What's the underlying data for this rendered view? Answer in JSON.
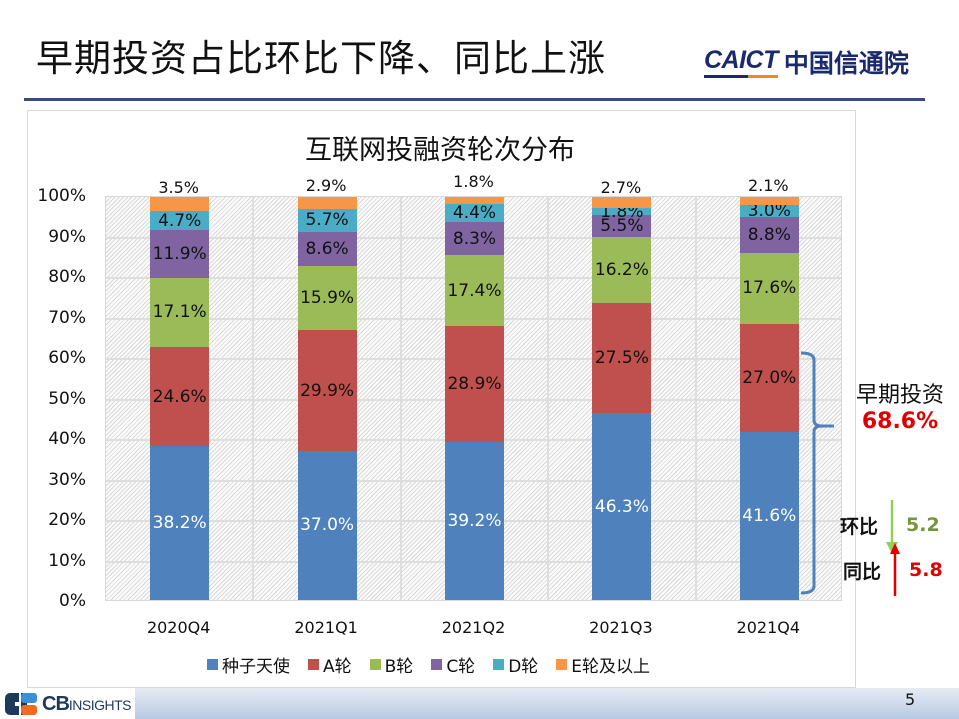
{
  "slide": {
    "title": "早期投资占比环比下降、同比上涨",
    "page_number": "5"
  },
  "logos": {
    "caict_en": "CAICT",
    "caict_cn": "中国信通院",
    "cb_big": "CB",
    "cb_small": "INSIGHTS"
  },
  "colors": {
    "seed": "#4f81bd",
    "a": "#c0504d",
    "b": "#9bbb59",
    "c": "#8064a2",
    "d": "#4bacc6",
    "e": "#f79646",
    "title_rule": "#3a4a7a",
    "highlight_red": "#e00000",
    "highlight_green": "#77933c",
    "arrow_green": "#92d050"
  },
  "chart_data": {
    "type": "bar",
    "stacked": true,
    "title": "互联网投融资轮次分布",
    "xlabel": "",
    "ylabel": "",
    "ylim": [
      0,
      100
    ],
    "y_ticks": [
      "0%",
      "10%",
      "20%",
      "30%",
      "40%",
      "50%",
      "60%",
      "70%",
      "80%",
      "90%",
      "100%"
    ],
    "categories": [
      "2020Q4",
      "2021Q1",
      "2021Q2",
      "2021Q3",
      "2021Q4"
    ],
    "series": [
      {
        "name": "种子天使",
        "key": "seed",
        "values": [
          38.2,
          37.0,
          39.2,
          46.3,
          41.6
        ],
        "labels": [
          "38.2%",
          "37.0%",
          "39.2%",
          "46.3%",
          "41.6%"
        ]
      },
      {
        "name": "A轮",
        "key": "a",
        "values": [
          24.6,
          29.9,
          28.9,
          27.5,
          27.0
        ],
        "labels": [
          "24.6%",
          "29.9%",
          "28.9%",
          "27.5%",
          "27.0%"
        ]
      },
      {
        "name": "B轮",
        "key": "b",
        "values": [
          17.1,
          15.9,
          17.4,
          16.2,
          17.6
        ],
        "labels": [
          "17.1%",
          "15.9%",
          "17.4%",
          "16.2%",
          "17.6%"
        ]
      },
      {
        "name": "C轮",
        "key": "c",
        "values": [
          11.9,
          8.6,
          8.3,
          5.5,
          8.8
        ],
        "labels": [
          "11.9%",
          "8.6%",
          "8.3%",
          "5.5%",
          "8.8%"
        ]
      },
      {
        "name": "D轮",
        "key": "d",
        "values": [
          4.7,
          5.7,
          4.4,
          1.8,
          3.0
        ],
        "labels": [
          "4.7%",
          "5.7%",
          "4.4%",
          "1.8%",
          "3.0%"
        ]
      },
      {
        "name": "E轮及以上",
        "key": "e",
        "values": [
          3.5,
          2.9,
          1.8,
          2.7,
          2.1
        ],
        "labels": [
          "3.5%",
          "2.9%",
          "1.8%",
          "2.7%",
          "2.1%"
        ]
      }
    ],
    "grid": true,
    "legend_position": "bottom",
    "annotations": [
      {
        "text": "早期投资",
        "value": "68.6%",
        "target": "2021Q4 种子天使 + A轮"
      },
      {
        "text": "环比",
        "value": "5.2",
        "direction": "down"
      },
      {
        "text": "同比",
        "value": "5.8",
        "direction": "up"
      }
    ]
  },
  "annotations": {
    "early_label": "早期投资",
    "early_value": "68.6%",
    "qoq_label": "环比",
    "qoq_value": "5.2",
    "yoy_label": "同比",
    "yoy_value": "5.8"
  }
}
